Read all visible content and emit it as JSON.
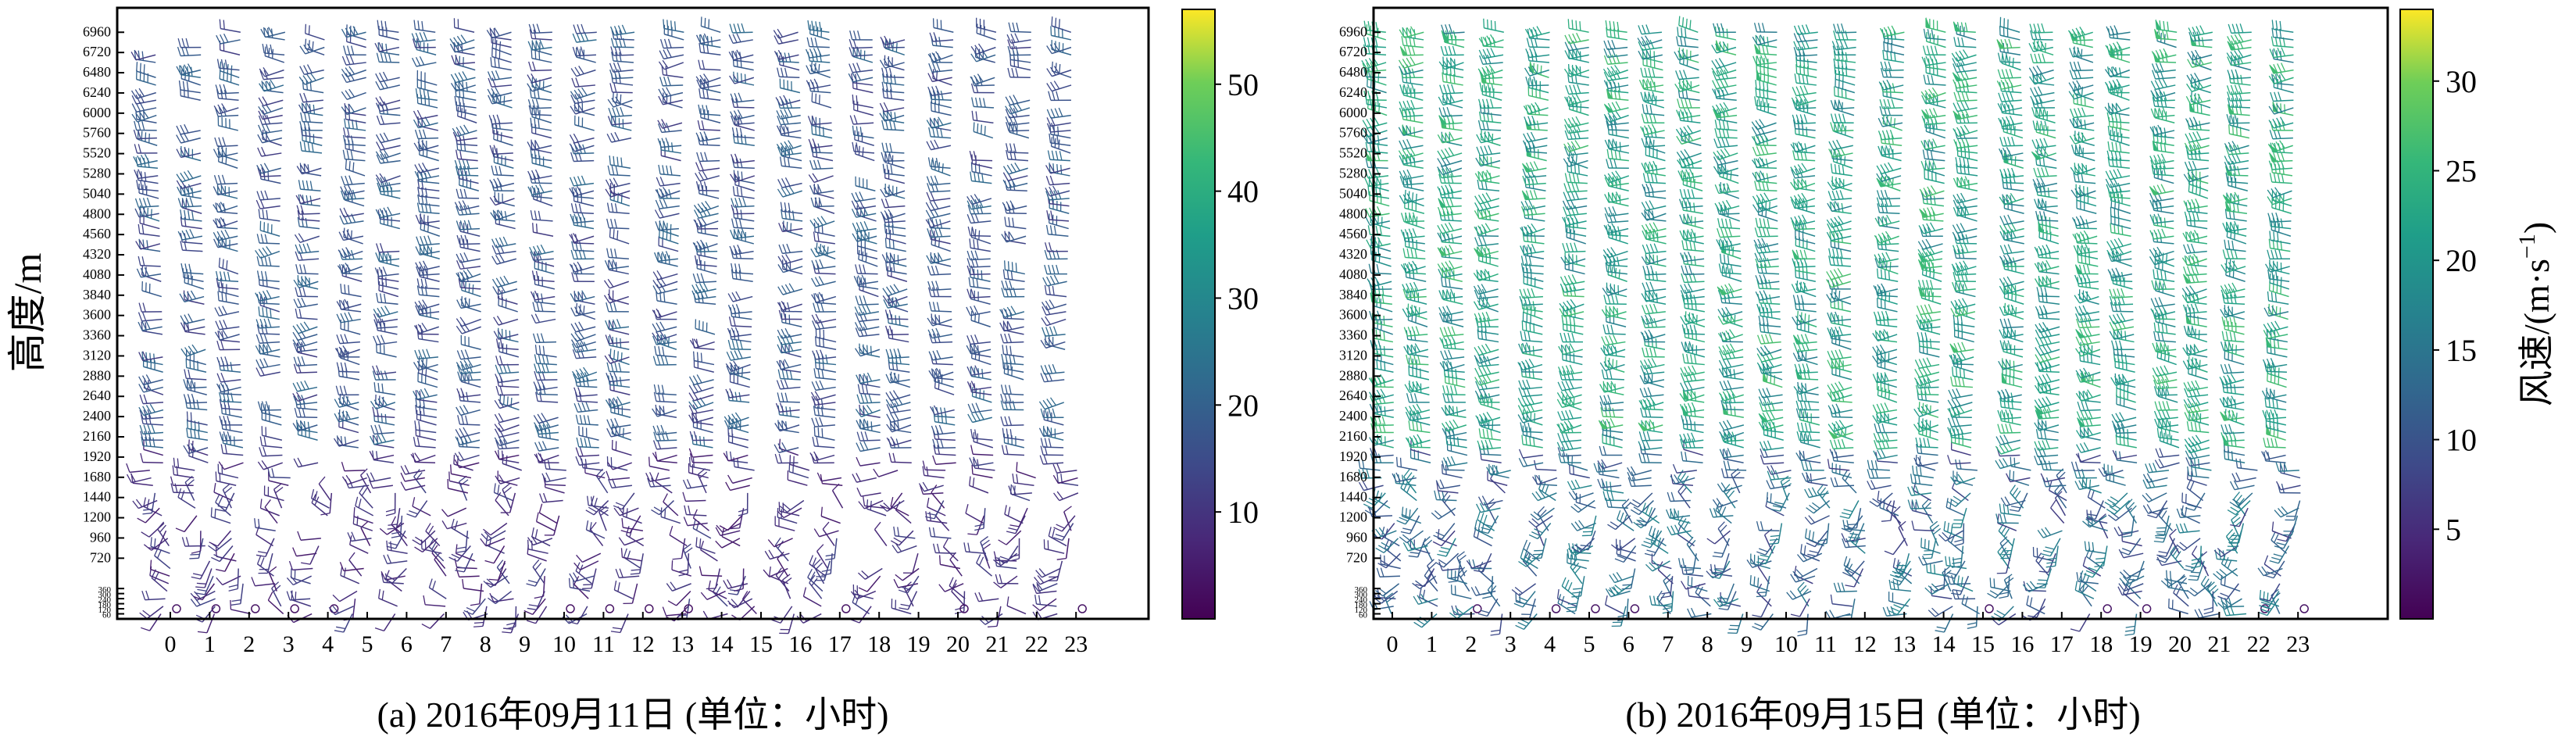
{
  "figure": {
    "ylabel": "高度/m",
    "colorbar_label_text": "风速/(m·s",
    "colorbar_label_sup": "−1",
    "colorbar_label_close": ")"
  },
  "chart_data": [
    {
      "type": "wind-barb",
      "id": "a",
      "caption": "(a) 2016年09月11日 (单位：小时",
      "caption_close": ")",
      "x_ticks": [
        "0",
        "1",
        "2",
        "3",
        "4",
        "5",
        "6",
        "7",
        "8",
        "9",
        "10",
        "11",
        "12",
        "13",
        "14",
        "15",
        "16",
        "17",
        "18",
        "19",
        "20",
        "21",
        "22",
        "23"
      ],
      "y_ticks": [
        "60",
        "120",
        "180",
        "240",
        "300",
        "360",
        "720",
        "960",
        "1200",
        "1440",
        "1680",
        "1920",
        "2160",
        "2400",
        "2640",
        "2880",
        "3120",
        "3360",
        "3600",
        "3840",
        "4080",
        "4320",
        "4560",
        "4800",
        "5040",
        "5280",
        "5520",
        "5760",
        "6000",
        "6240",
        "6480",
        "6720",
        "6960"
      ],
      "ylim": [
        0,
        7250
      ],
      "ylabel": "高度/m",
      "colorbar": {
        "ticks": [
          "10",
          "20",
          "30",
          "40",
          "50"
        ],
        "range": [
          0,
          57
        ]
      },
      "colormap": "viridis",
      "typical_speed_low": [
        4,
        12
      ],
      "typical_speed_high": [
        10,
        20
      ],
      "notes": "wind barbs per hour (0–23) and height level; low-level calm circles shown as small rings"
    },
    {
      "type": "wind-barb",
      "id": "b",
      "caption": "(b) 2016年09月15日 (单位：小时",
      "caption_close": ")",
      "x_ticks": [
        "0",
        "1",
        "2",
        "3",
        "4",
        "5",
        "6",
        "7",
        "8",
        "9",
        "10",
        "11",
        "12",
        "13",
        "14",
        "15",
        "16",
        "17",
        "18",
        "19",
        "20",
        "21",
        "22",
        "23"
      ],
      "y_ticks": [
        "60",
        "120",
        "180",
        "240",
        "300",
        "360",
        "720",
        "960",
        "1200",
        "1440",
        "1680",
        "1920",
        "2160",
        "2400",
        "2640",
        "2880",
        "3120",
        "3360",
        "3600",
        "3840",
        "4080",
        "4320",
        "4560",
        "4800",
        "5040",
        "5280",
        "5520",
        "5760",
        "6000",
        "6240",
        "6480",
        "6720",
        "6960"
      ],
      "ylim": [
        0,
        7250
      ],
      "colorbar": {
        "ticks": [
          "5",
          "10",
          "15",
          "20",
          "25",
          "30"
        ],
        "range": [
          0,
          34
        ]
      },
      "colormap": "viridis",
      "typical_speed_low": [
        6,
        16
      ],
      "typical_speed_high": [
        14,
        24
      ],
      "notes": "stronger, steadier westerly barbs through the column than panel (a)"
    }
  ]
}
